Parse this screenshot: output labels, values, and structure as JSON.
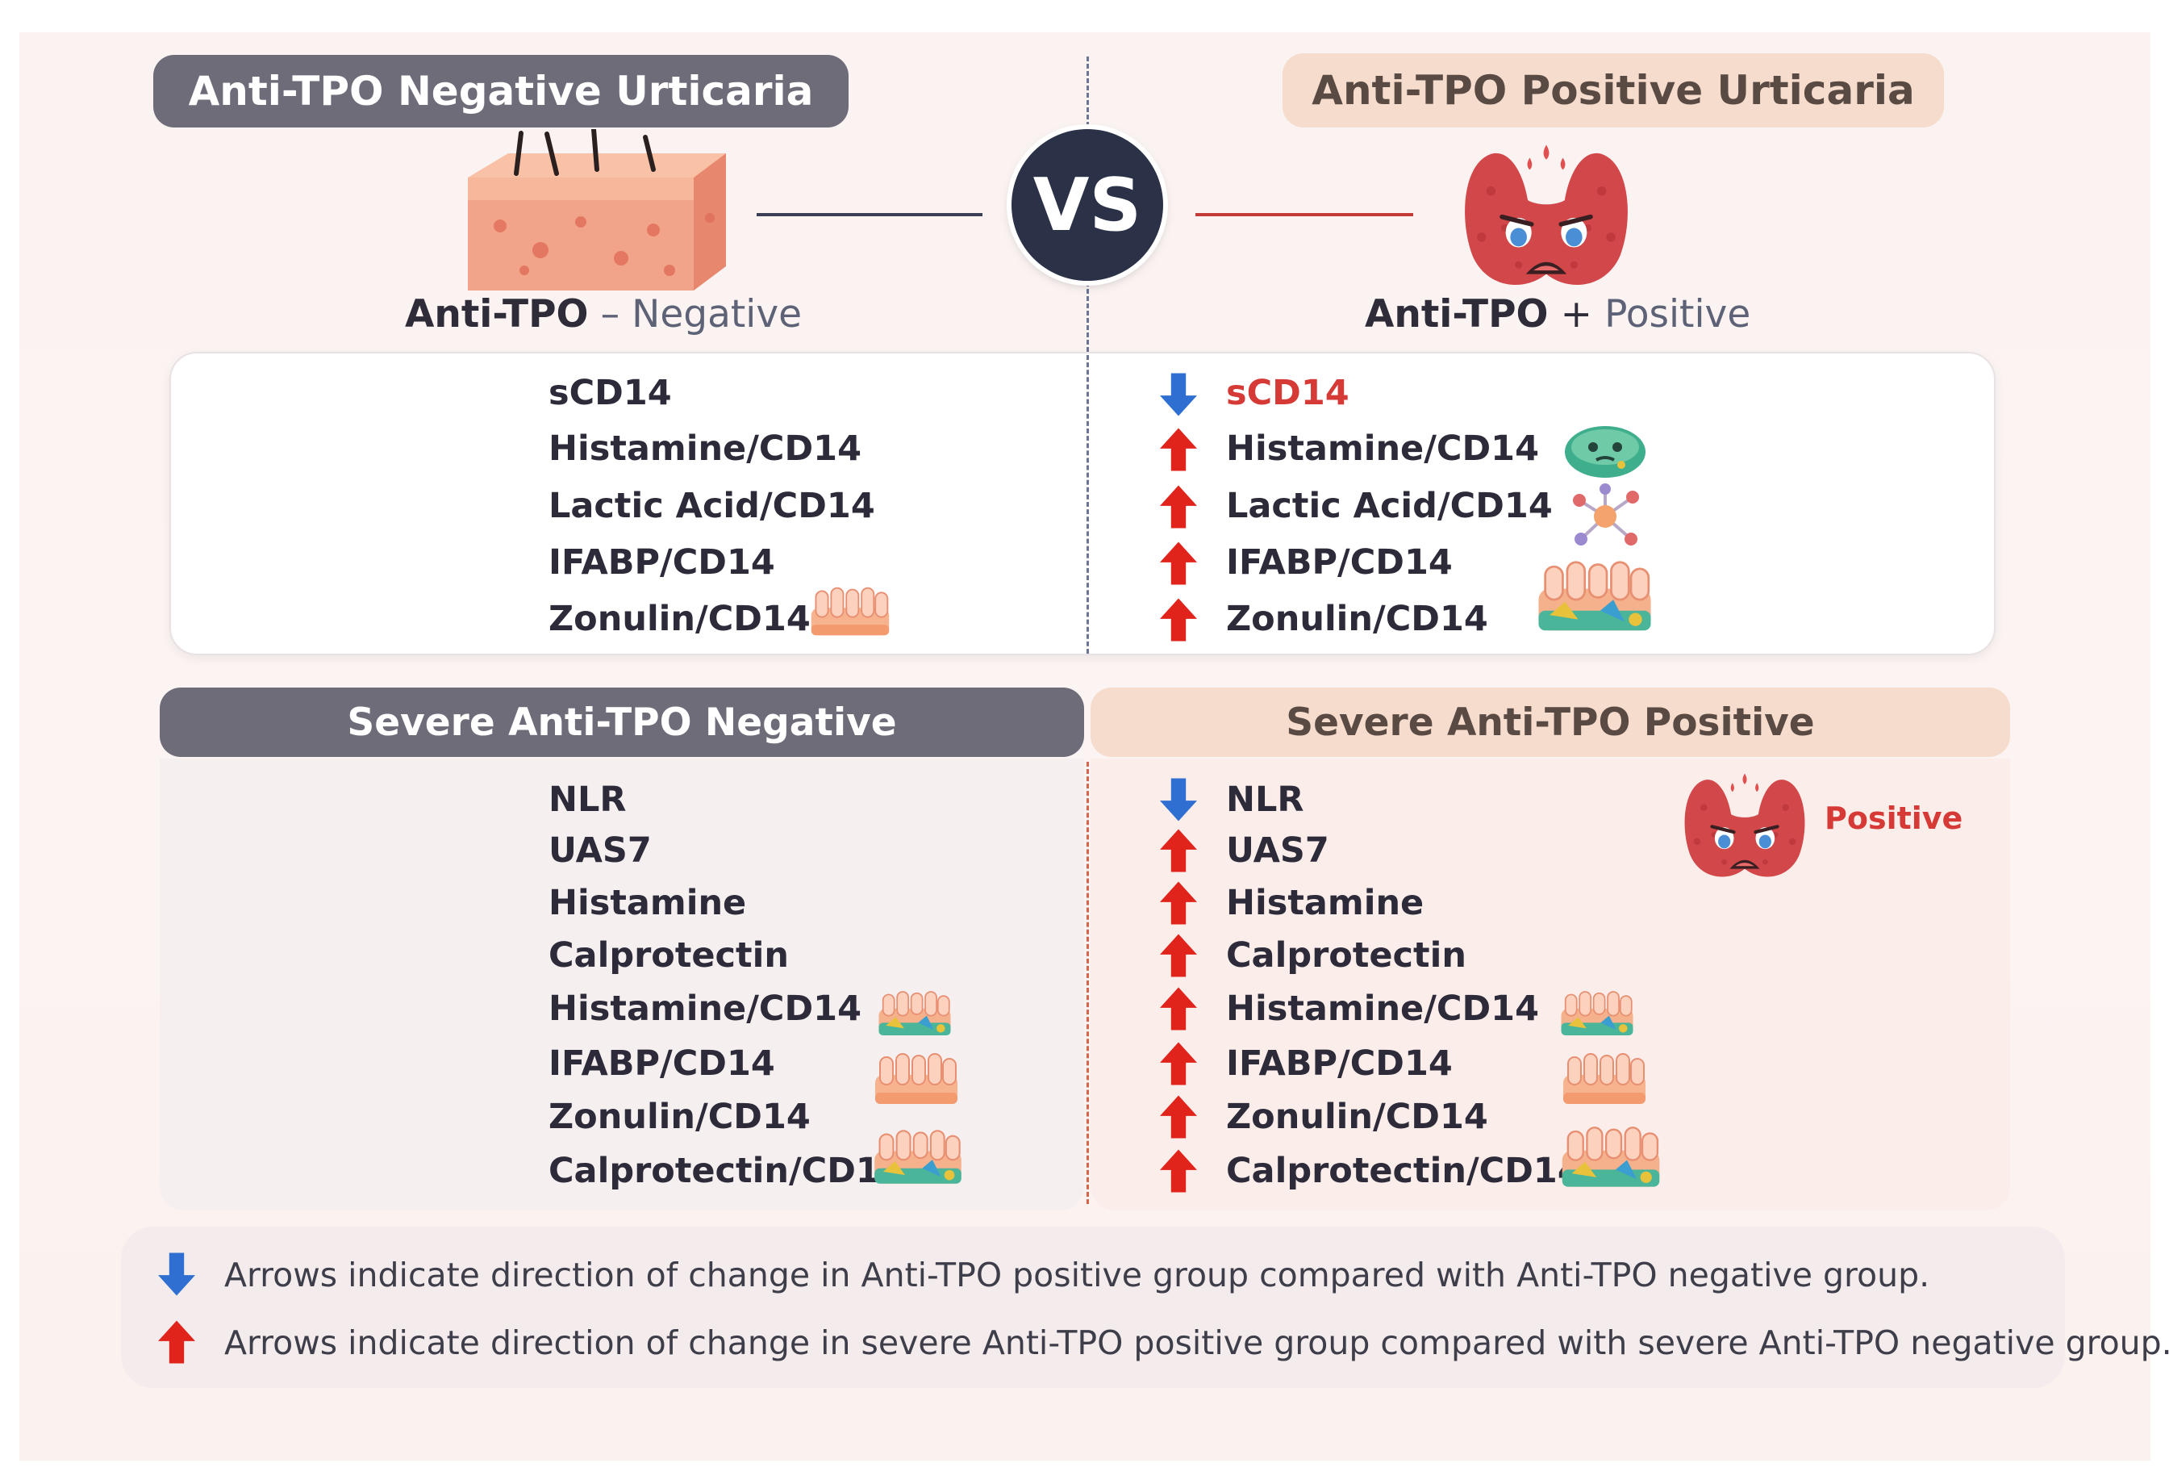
{
  "header": {
    "left_title": "Anti-TPO Negative Urticaria",
    "right_title": "Anti-TPO Positive Urticaria",
    "vs": "VS"
  },
  "left_label": {
    "main": "Anti-TPO",
    "sign": "–",
    "sub": "Negative"
  },
  "right_label": {
    "main": "Anti-TPO",
    "sign": "+",
    "sub": "Positive"
  },
  "comparison": {
    "items": [
      "sCD14",
      "Histamine/CD14",
      "Lactic Acid/CD14",
      "IFABP/CD14",
      "Zonulin/CD14"
    ],
    "directions": [
      "down",
      "up",
      "up",
      "up",
      "up"
    ]
  },
  "severe": {
    "left_title": "Severe Anti-TPO Negative",
    "right_title": "Severe Anti-TPO Positive",
    "items": [
      "NLR",
      "UAS7",
      "Histamine",
      "Calprotectin",
      "Histamine/CD14",
      "IFABP/CD14",
      "Zonulin/CD14",
      "Calprotectin/CD14"
    ],
    "directions": [
      "down",
      "up",
      "up",
      "up",
      "up",
      "up",
      "up",
      "up"
    ],
    "thyroid_label": "Positive"
  },
  "legend": {
    "down_text": "Arrows indicate direction of change in Anti-TPO positive group compared with Anti-TPO negative group.",
    "up_text": "Arrows indicate direction of change in severe Anti-TPO positive group compared with severe Anti-TPO negative group."
  },
  "colors": {
    "grey_pill": "#6f6c7a",
    "peach_pill": "#f6dccc",
    "arrow_up": "#e0241c",
    "arrow_down": "#2f6fd1",
    "highlight_red": "#d63a36",
    "navy_circle": "#2b3147"
  },
  "icons": {
    "skin": "skin-tissue-icon",
    "thyroid": "sad-thyroid-icon",
    "bacteria": "bacteria-icon",
    "molecule": "molecule-icon",
    "intestine": "intestinal-villi-icon"
  }
}
